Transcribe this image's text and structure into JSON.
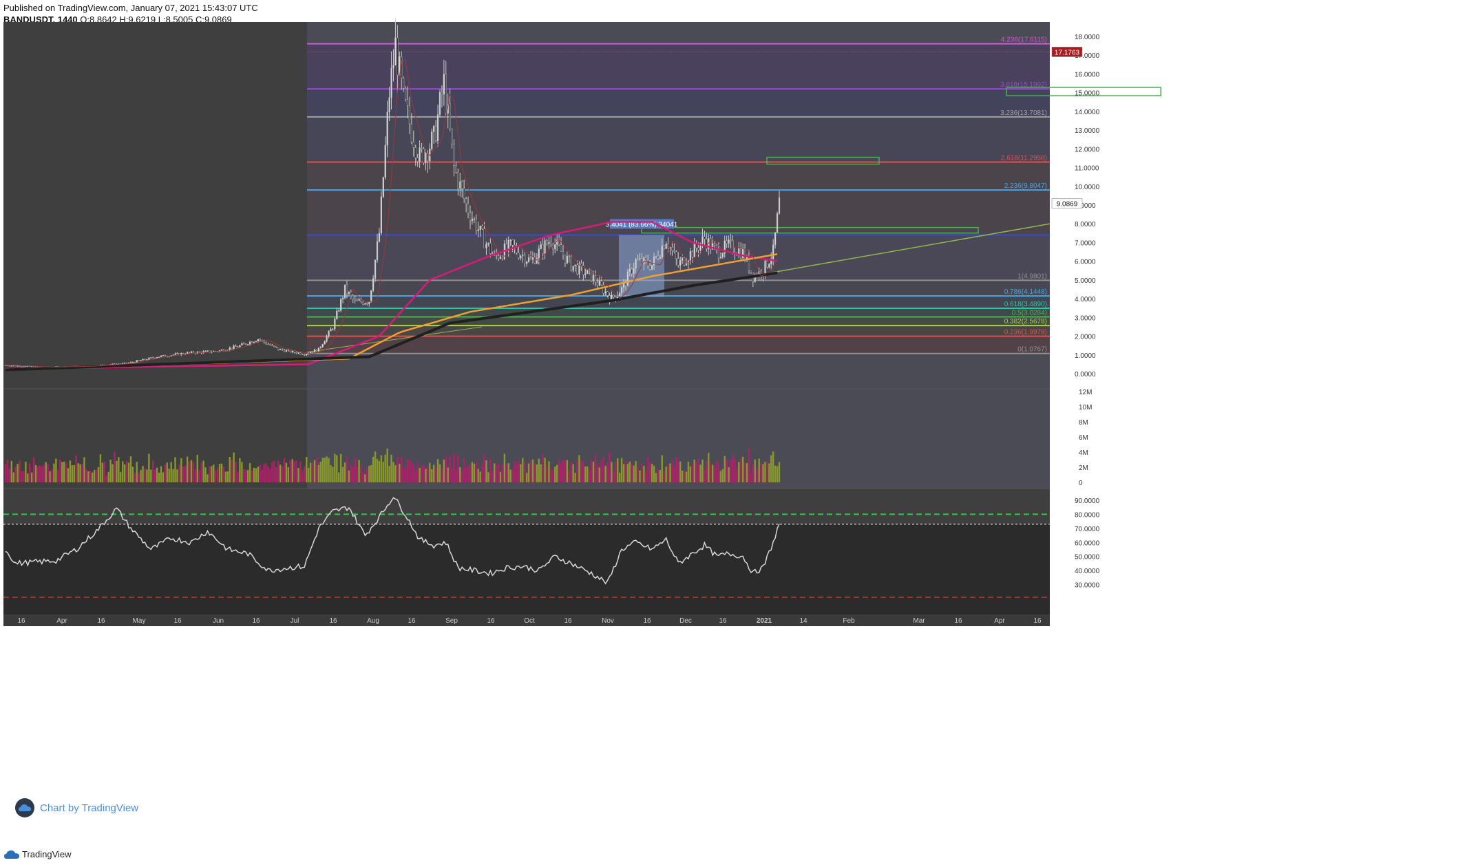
{
  "header": {
    "published": "Published on TradingView.com, January 07, 2021 15:43:07 UTC",
    "symbol": "BANDUSDT, 1440",
    "ohlc": "O:8.8642 H:9.6219 L:8.5005 C:9.0869"
  },
  "footer": {
    "brand": "TradingView",
    "watermark": "Chart by TradingView"
  },
  "colors": {
    "bg": "#3f3f3f",
    "highlight_bg": "#4a4b55",
    "bull": "#d9d9d9",
    "bear": "#2a2a2a",
    "vol_up": "#8a9a2a",
    "vol_down": "#b0206a",
    "ma_pink": "#d81b7a",
    "ma_orange": "#f0a030",
    "ma_black": "#202020",
    "rsi_line": "#d8d8d8"
  },
  "chart_data": [
    {
      "type": "candlestick",
      "pane": "price",
      "symbol": "BANDUSDT",
      "timeframe": "1440",
      "ylim": [
        0,
        18.5
      ],
      "y_ticks": [
        "18.0000",
        "17.0000",
        "16.0000",
        "15.0000",
        "14.0000",
        "13.0000",
        "12.0000",
        "11.0000",
        "10.0000",
        "9.0000",
        "8.0000",
        "7.0000",
        "6.0000",
        "5.0000",
        "4.0000",
        "3.0000",
        "2.0000",
        "1.0000",
        "0.0000"
      ],
      "x_ticks": [
        "16",
        "Apr",
        "16",
        "May",
        "16",
        "Jun",
        "16",
        "Jul",
        "16",
        "Aug",
        "16",
        "Sep",
        "16",
        "Oct",
        "16",
        "Nov",
        "16",
        "Dec",
        "16",
        "2021",
        "14",
        "Feb",
        "Mar",
        "16",
        "Apr",
        "16"
      ],
      "last_price": {
        "label": "9.0869",
        "value": 9.0869
      },
      "marked_price": {
        "label": "17.1763",
        "value": 17.1763
      },
      "close_path": [
        {
          "t": 0,
          "v": 0.45
        },
        {
          "t": 20,
          "v": 0.35
        },
        {
          "t": 40,
          "v": 0.4
        },
        {
          "t": 60,
          "v": 0.55
        },
        {
          "t": 75,
          "v": 0.9
        },
        {
          "t": 90,
          "v": 1.1
        },
        {
          "t": 105,
          "v": 1.2
        },
        {
          "t": 115,
          "v": 1.45
        },
        {
          "t": 125,
          "v": 1.85
        },
        {
          "t": 135,
          "v": 1.3
        },
        {
          "t": 148,
          "v": 1.05
        },
        {
          "t": 155,
          "v": 1.3
        },
        {
          "t": 162,
          "v": 2.5
        },
        {
          "t": 168,
          "v": 4.5
        },
        {
          "t": 173,
          "v": 3.8
        },
        {
          "t": 180,
          "v": 3.9
        },
        {
          "t": 185,
          "v": 7.5
        },
        {
          "t": 190,
          "v": 15.0
        },
        {
          "t": 193,
          "v": 17.5
        },
        {
          "t": 197,
          "v": 14.5
        },
        {
          "t": 205,
          "v": 11.5
        },
        {
          "t": 212,
          "v": 12.5
        },
        {
          "t": 217,
          "v": 15.5
        },
        {
          "t": 222,
          "v": 11.0
        },
        {
          "t": 228,
          "v": 9.0
        },
        {
          "t": 235,
          "v": 7.5
        },
        {
          "t": 242,
          "v": 6.2
        },
        {
          "t": 250,
          "v": 6.8
        },
        {
          "t": 260,
          "v": 6.0
        },
        {
          "t": 270,
          "v": 7.2
        },
        {
          "t": 280,
          "v": 5.8
        },
        {
          "t": 290,
          "v": 5.2
        },
        {
          "t": 300,
          "v": 4.0
        },
        {
          "t": 305,
          "v": 4.5
        },
        {
          "t": 312,
          "v": 6.0
        },
        {
          "t": 320,
          "v": 5.8
        },
        {
          "t": 327,
          "v": 7.2
        },
        {
          "t": 333,
          "v": 5.8
        },
        {
          "t": 340,
          "v": 6.5
        },
        {
          "t": 346,
          "v": 7.2
        },
        {
          "t": 352,
          "v": 6.5
        },
        {
          "t": 358,
          "v": 6.8
        },
        {
          "t": 365,
          "v": 6.5
        },
        {
          "t": 370,
          "v": 5.2
        },
        {
          "t": 375,
          "v": 5.5
        },
        {
          "t": 380,
          "v": 6.5
        },
        {
          "t": 383,
          "v": 9.1
        }
      ],
      "moving_averages": [
        {
          "name": "MA pink",
          "points": [
            {
              "t": 0,
              "v": 0.25
            },
            {
              "t": 150,
              "v": 0.5
            },
            {
              "t": 185,
              "v": 2.0
            },
            {
              "t": 210,
              "v": 5.0
            },
            {
              "t": 240,
              "v": 6.3
            },
            {
              "t": 270,
              "v": 7.4
            },
            {
              "t": 300,
              "v": 8.1
            },
            {
              "t": 320,
              "v": 8.1
            },
            {
              "t": 340,
              "v": 7.0
            },
            {
              "t": 365,
              "v": 6.3
            },
            {
              "t": 383,
              "v": 6.0
            }
          ]
        },
        {
          "name": "MA orange",
          "points": [
            {
              "t": 0,
              "v": 0.2
            },
            {
              "t": 170,
              "v": 0.8
            },
            {
              "t": 195,
              "v": 2.2
            },
            {
              "t": 230,
              "v": 3.3
            },
            {
              "t": 280,
              "v": 4.2
            },
            {
              "t": 320,
              "v": 5.2
            },
            {
              "t": 383,
              "v": 6.4
            }
          ]
        },
        {
          "name": "MA black",
          "points": [
            {
              "t": 0,
              "v": 0.2
            },
            {
              "t": 180,
              "v": 0.9
            },
            {
              "t": 220,
              "v": 2.7
            },
            {
              "t": 260,
              "v": 3.3
            },
            {
              "t": 300,
              "v": 3.9
            },
            {
              "t": 340,
              "v": 4.7
            },
            {
              "t": 383,
              "v": 5.4
            }
          ]
        }
      ],
      "fib_levels": [
        {
          "label": "0(1.0767)",
          "value": 1.0767,
          "color": "#909090"
        },
        {
          "label": "0.236(1.9978)",
          "value": 1.9978,
          "color": "#e05050"
        },
        {
          "label": "0.382(2.5678)",
          "value": 2.5678,
          "color": "#a6d83a"
        },
        {
          "label": "0.5(3.0284)",
          "value": 3.0284,
          "color": "#4caf50"
        },
        {
          "label": "0.618(3.4890)",
          "value": 3.489,
          "color": "#26c6a6"
        },
        {
          "label": "0.786(4.1448)",
          "value": 4.1448,
          "color": "#4aa3e0"
        },
        {
          "label": "1(4.9801)",
          "value": 4.9801,
          "color": "#909090"
        },
        {
          "label": "",
          "value": 7.4,
          "color": "#3a4ad0"
        },
        {
          "label": "2.236(9.8047)",
          "value": 9.8047,
          "color": "#4aa3e0"
        },
        {
          "label": "2.618(11.2958)",
          "value": 11.2958,
          "color": "#e05050"
        },
        {
          "label": "3.236(13.7081)",
          "value": 13.7081,
          "color": "#a0a0a0"
        },
        {
          "label": "3.618(15.1992)",
          "value": 15.1992,
          "color": "#9a4ad8"
        },
        {
          "label": "4.236(17.6115)",
          "value": 17.6115,
          "color": "#d05ad8"
        }
      ],
      "measure_box_label": "3.4041 (83.66%) 34041",
      "annotations": [
        "green target box near 15.2",
        "green target box near 11.4",
        "green box near 7.6",
        "trendline"
      ]
    },
    {
      "type": "bar",
      "pane": "volume",
      "ylim": [
        0,
        12000000
      ],
      "y_ticks": [
        "12M",
        "10M",
        "8M",
        "6M",
        "4M",
        "2M",
        "0"
      ]
    },
    {
      "type": "line",
      "pane": "rsi",
      "ylim": [
        22,
        95
      ],
      "y_ticks": [
        "90.0000",
        "80.0000",
        "70.0000",
        "60.0000",
        "50.0000",
        "40.0000",
        "30.0000"
      ],
      "overbought": 80,
      "current": 73,
      "oversold": 20,
      "points": [
        {
          "t": 0,
          "v": 55
        },
        {
          "t": 5,
          "v": 45
        },
        {
          "t": 15,
          "v": 46
        },
        {
          "t": 25,
          "v": 47
        },
        {
          "t": 35,
          "v": 55
        },
        {
          "t": 45,
          "v": 68
        },
        {
          "t": 55,
          "v": 84
        },
        {
          "t": 62,
          "v": 70
        },
        {
          "t": 72,
          "v": 55
        },
        {
          "t": 82,
          "v": 63
        },
        {
          "t": 92,
          "v": 60
        },
        {
          "t": 100,
          "v": 68
        },
        {
          "t": 110,
          "v": 55
        },
        {
          "t": 120,
          "v": 52
        },
        {
          "t": 130,
          "v": 40
        },
        {
          "t": 140,
          "v": 42
        },
        {
          "t": 148,
          "v": 43
        },
        {
          "t": 155,
          "v": 70
        },
        {
          "t": 162,
          "v": 82
        },
        {
          "t": 170,
          "v": 85
        },
        {
          "t": 178,
          "v": 65
        },
        {
          "t": 185,
          "v": 78
        },
        {
          "t": 192,
          "v": 93
        },
        {
          "t": 198,
          "v": 80
        },
        {
          "t": 205,
          "v": 62
        },
        {
          "t": 212,
          "v": 58
        },
        {
          "t": 218,
          "v": 60
        },
        {
          "t": 224,
          "v": 42
        },
        {
          "t": 232,
          "v": 40
        },
        {
          "t": 240,
          "v": 38
        },
        {
          "t": 248,
          "v": 42
        },
        {
          "t": 256,
          "v": 43
        },
        {
          "t": 264,
          "v": 40
        },
        {
          "t": 272,
          "v": 50
        },
        {
          "t": 280,
          "v": 45
        },
        {
          "t": 290,
          "v": 38
        },
        {
          "t": 298,
          "v": 31
        },
        {
          "t": 305,
          "v": 55
        },
        {
          "t": 312,
          "v": 60
        },
        {
          "t": 320,
          "v": 55
        },
        {
          "t": 327,
          "v": 62
        },
        {
          "t": 333,
          "v": 45
        },
        {
          "t": 340,
          "v": 52
        },
        {
          "t": 346,
          "v": 58
        },
        {
          "t": 352,
          "v": 50
        },
        {
          "t": 358,
          "v": 52
        },
        {
          "t": 365,
          "v": 50
        },
        {
          "t": 370,
          "v": 38
        },
        {
          "t": 375,
          "v": 42
        },
        {
          "t": 380,
          "v": 60
        },
        {
          "t": 383,
          "v": 73
        }
      ]
    }
  ]
}
